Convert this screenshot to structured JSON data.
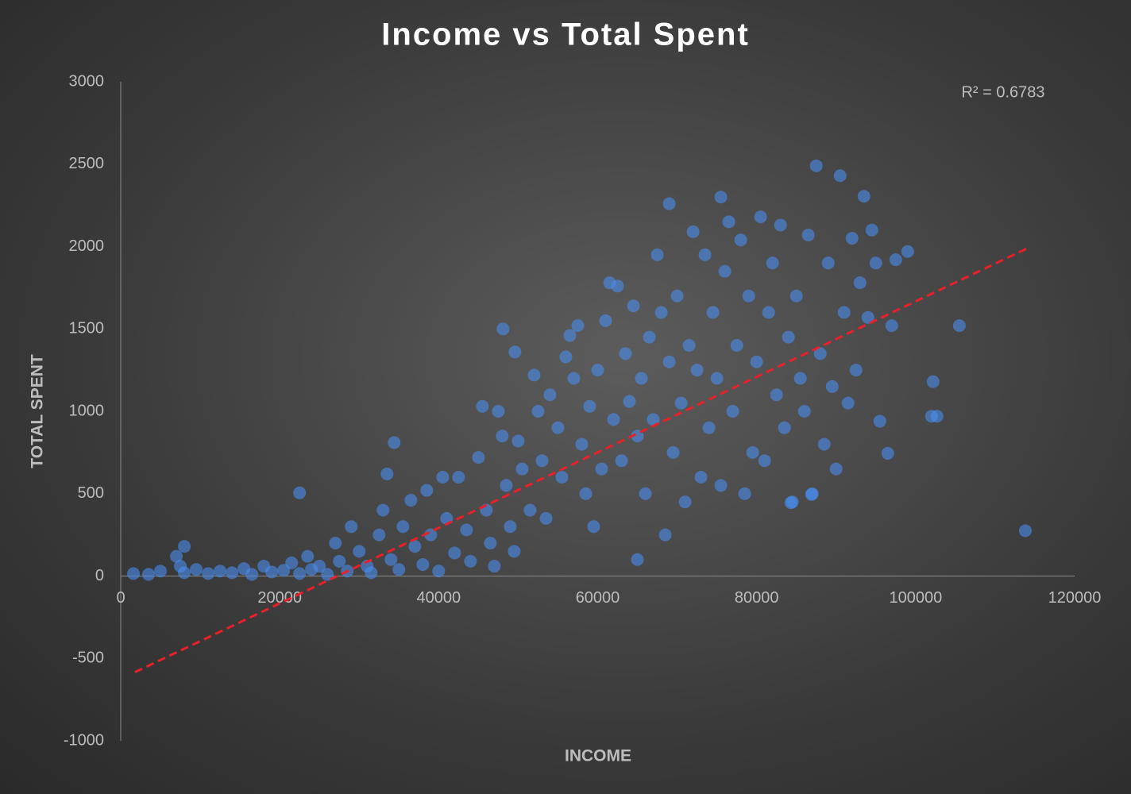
{
  "chart_data": {
    "type": "scatter",
    "title": "Income vs Total Spent",
    "xlabel": "INCOME",
    "ylabel": "TOTAL SPENT",
    "annotation": "R² = 0.6783",
    "color": "#4a8ef0",
    "x": [
      3500,
      5000,
      7000,
      7500,
      8000,
      9500,
      11000,
      12500,
      14000,
      15500,
      16500,
      18000,
      19000,
      20500,
      21500,
      22500,
      23500,
      24000,
      25000,
      26000,
      27000,
      27500,
      28500,
      29000,
      30000,
      31000,
      31500,
      32500,
      33000,
      33500,
      34000,
      35000,
      35500,
      36500,
      37000,
      38000,
      38500,
      39000,
      40000,
      40500,
      41000,
      42000,
      42500,
      43500,
      44000,
      45000,
      45500,
      46000,
      46500,
      47000,
      47500,
      48000,
      48500,
      49000,
      49500,
      50000,
      50500,
      51500,
      52000,
      52500,
      53000,
      53500,
      54000,
      55000,
      55500,
      56000,
      56500,
      57000,
      57500,
      58000,
      58500,
      59000,
      59500,
      60000,
      60500,
      61000,
      61500,
      62000,
      62500,
      63000,
      63500,
      64000,
      64500,
      65000,
      65000,
      65500,
      66000,
      66500,
      67000,
      67500,
      68000,
      68500,
      69000,
      69000,
      69500,
      70000,
      70500,
      71000,
      71500,
      72000,
      72500,
      73000,
      73500,
      74000,
      74500,
      75000,
      75500,
      75500,
      76000,
      76500,
      77000,
      77500,
      78000,
      78500,
      79000,
      79500,
      80000,
      80500,
      81000,
      81500,
      82000,
      82500,
      83000,
      83500,
      84000,
      84500,
      85000,
      85500,
      86000,
      86500,
      87000,
      87500,
      88000,
      88500,
      89000,
      89500,
      90000,
      90500,
      91000,
      91500,
      92000,
      92500,
      93000,
      93500,
      94000,
      94500,
      95000,
      95500,
      96500,
      97000,
      97500,
      99000,
      102000,
      102700,
      102200,
      105500,
      113800,
      22500,
      48100,
      49600,
      34400,
      84300,
      86900,
      8000,
      1600
    ],
    "values": [
      10,
      30,
      120,
      60,
      20,
      40,
      15,
      30,
      20,
      45,
      10,
      60,
      25,
      35,
      80,
      15,
      120,
      40,
      60,
      10,
      200,
      90,
      30,
      300,
      150,
      60,
      20,
      250,
      400,
      620,
      100,
      40,
      300,
      460,
      180,
      70,
      520,
      250,
      30,
      600,
      350,
      140,
      600,
      280,
      90,
      720,
      1030,
      400,
      200,
      60,
      1000,
      850,
      550,
      300,
      150,
      820,
      650,
      400,
      1220,
      1000,
      700,
      350,
      1100,
      900,
      600,
      1330,
      1460,
      1200,
      1520,
      800,
      500,
      1030,
      300,
      1250,
      650,
      1550,
      1780,
      950,
      1760,
      700,
      1350,
      1060,
      1640,
      850,
      100,
      1200,
      500,
      1450,
      950,
      1950,
      1600,
      250,
      2260,
      1300,
      750,
      1700,
      1050,
      450,
      1400,
      2090,
      1250,
      600,
      1950,
      900,
      1600,
      1200,
      2300,
      550,
      1850,
      2150,
      1000,
      1400,
      2040,
      500,
      1700,
      750,
      1300,
      2180,
      700,
      1600,
      1900,
      1100,
      2130,
      900,
      1450,
      450,
      1700,
      1200,
      1000,
      2070,
      500,
      2490,
      1350,
      800,
      1900,
      1150,
      650,
      2430,
      1600,
      1050,
      2050,
      1250,
      1780,
      2305,
      1570,
      2100,
      1900,
      940,
      745,
      1520,
      1920,
      1970,
      970,
      970,
      1180,
      1520,
      275,
      505,
      1500,
      1360,
      810,
      445,
      495,
      180,
      15
    ],
    "trendline": {
      "x": [
        1800,
        114000
      ],
      "y": [
        -583,
        1988
      ],
      "color": "#e8202a"
    },
    "xlim": [
      0,
      120000
    ],
    "xticks": [
      0,
      20000,
      40000,
      60000,
      80000,
      100000,
      120000
    ],
    "ylim": [
      -1000,
      3000
    ],
    "yticks": [
      -1000,
      -500,
      0,
      500,
      1000,
      1500,
      2000,
      2500,
      3000
    ]
  }
}
